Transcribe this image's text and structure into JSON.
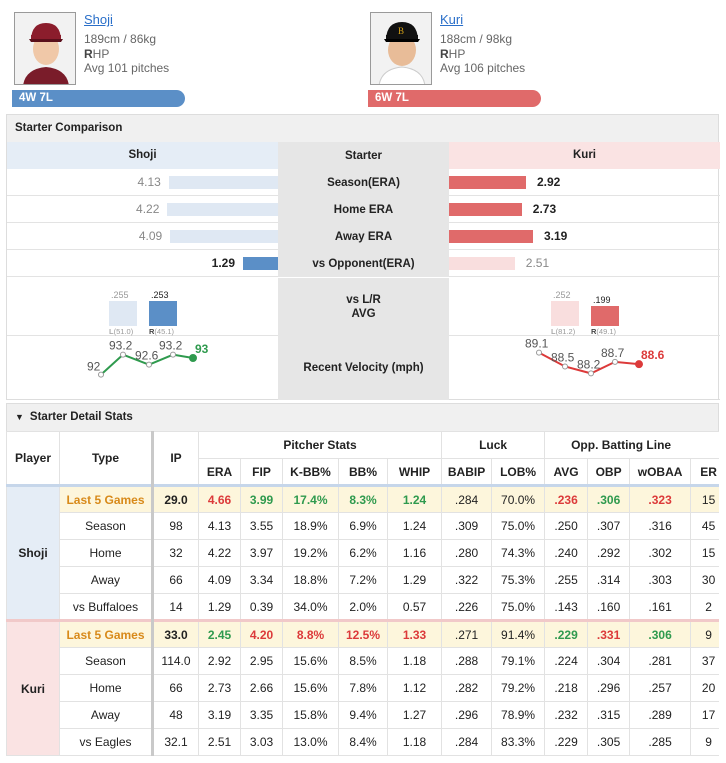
{
  "away": {
    "name": "Shoji",
    "height_weight": "189cm / 86kg",
    "hand_prefix": "R",
    "hand_suffix": "HP",
    "avg_pitches": "Avg 101 pitches",
    "record": "4W 7L"
  },
  "home": {
    "name": "Kuri",
    "height_weight": "188cm / 98kg",
    "hand_prefix": "R",
    "hand_suffix": "HP",
    "avg_pitches": "Avg 106 pitches",
    "record": "6W 7L"
  },
  "comparison": {
    "title": "Starter Comparison",
    "header": {
      "left": "Shoji",
      "mid": "Starter",
      "right": "Kuri"
    },
    "rows": [
      {
        "label": "Season(ERA)",
        "left": "4.13",
        "right": "2.92",
        "left_ratio": 0.78,
        "right_ratio": 0.55
      },
      {
        "label": "Home ERA",
        "left": "4.22",
        "right": "2.73",
        "left_ratio": 0.79,
        "right_ratio": 0.52
      },
      {
        "label": "Away ERA",
        "left": "4.09",
        "right": "3.19",
        "left_ratio": 0.77,
        "right_ratio": 0.6
      },
      {
        "label": "vs Opponent(ERA)",
        "left": "1.29",
        "right": "2.51",
        "left_ratio": 0.25,
        "right_ratio": 0.47
      }
    ],
    "lr": {
      "label1": "vs L/R",
      "label2": "AVG",
      "left": {
        "l_val": ".255",
        "r_val": ".253",
        "l_lab": "L",
        "l_ip": "(51.0)",
        "r_lab": "R",
        "r_ip": "(45.1)",
        "l_frac": 0.255,
        "r_frac": 0.253
      },
      "right": {
        "l_val": ".252",
        "r_val": ".199",
        "l_lab": "L",
        "l_ip": "(81.2)",
        "r_lab": "R",
        "r_ip": "(49.1)",
        "l_frac": 0.252,
        "r_frac": 0.199
      }
    },
    "velo": {
      "label": "Recent Velocity (mph)",
      "left": [
        "92",
        "93.2",
        "92.6",
        "93.2",
        "93"
      ],
      "right": [
        "89.1",
        "88.5",
        "88.2",
        "88.7",
        "88.6"
      ]
    }
  },
  "detail": {
    "title": "Starter Detail Stats",
    "headers": {
      "player": "Player",
      "type": "Type",
      "ip": "IP",
      "pitcher": "Pitcher Stats",
      "luck": "Luck",
      "opp": "Opp. Batting Line",
      "era": "ERA",
      "fip": "FIP",
      "kbb": "K-BB%",
      "bb": "BB%",
      "whip": "WHIP",
      "babip": "BABIP",
      "lob": "LOB%",
      "avg": "AVG",
      "obp": "OBP",
      "woba": "wOBAA",
      "er": "ER"
    },
    "players": [
      {
        "name": "Shoji",
        "rows": [
          [
            "Last 5 Games",
            "29.0",
            "4.66",
            "3.99",
            "17.4%",
            "8.3%",
            "1.24",
            ".284",
            "70.0%",
            ".236",
            ".306",
            ".323",
            "15"
          ],
          [
            "Season",
            "98",
            "4.13",
            "3.55",
            "18.9%",
            "6.9%",
            "1.24",
            ".309",
            "75.0%",
            ".250",
            ".307",
            ".316",
            "45"
          ],
          [
            "Home",
            "32",
            "4.22",
            "3.97",
            "19.2%",
            "6.2%",
            "1.16",
            ".280",
            "74.3%",
            ".240",
            ".292",
            ".302",
            "15"
          ],
          [
            "Away",
            "66",
            "4.09",
            "3.34",
            "18.8%",
            "7.2%",
            "1.29",
            ".322",
            "75.3%",
            ".255",
            ".314",
            ".303",
            "30"
          ],
          [
            "vs Buffaloes",
            "14",
            "1.29",
            "0.39",
            "34.0%",
            "2.0%",
            "0.57",
            ".226",
            "75.0%",
            ".143",
            ".160",
            ".161",
            "2"
          ]
        ]
      },
      {
        "name": "Kuri",
        "rows": [
          [
            "Last 5 Games",
            "33.0",
            "2.45",
            "4.20",
            "8.8%",
            "12.5%",
            "1.33",
            ".271",
            "91.4%",
            ".229",
            ".331",
            ".306",
            "9"
          ],
          [
            "Season",
            "114.0",
            "2.92",
            "2.95",
            "15.6%",
            "8.5%",
            "1.18",
            ".288",
            "79.1%",
            ".224",
            ".304",
            ".281",
            "37"
          ],
          [
            "Home",
            "66",
            "2.73",
            "2.66",
            "15.6%",
            "7.8%",
            "1.12",
            ".282",
            "79.2%",
            ".218",
            ".296",
            ".257",
            "20"
          ],
          [
            "Away",
            "48",
            "3.19",
            "3.35",
            "15.8%",
            "9.4%",
            "1.27",
            ".296",
            "78.9%",
            ".232",
            ".315",
            ".289",
            "17"
          ],
          [
            "vs Eagles",
            "32.1",
            "2.51",
            "3.03",
            "13.0%",
            "8.4%",
            "1.18",
            ".284",
            "83.3%",
            ".229",
            ".305",
            ".285",
            "9"
          ]
        ]
      }
    ],
    "last5_colors": {
      "Shoji": [
        "b",
        "r",
        "g",
        "g",
        "g",
        "g",
        "",
        "",
        "r",
        "g",
        "r",
        ""
      ],
      "Kuri": [
        "b",
        "g",
        "r",
        "r",
        "r",
        "r",
        "",
        "",
        "g",
        "r",
        "g",
        ""
      ]
    }
  },
  "colors": {
    "away": "#5b8fc7",
    "away_light": "#dfe8f3",
    "home": "#e06a6a",
    "home_light": "#f9dede"
  }
}
